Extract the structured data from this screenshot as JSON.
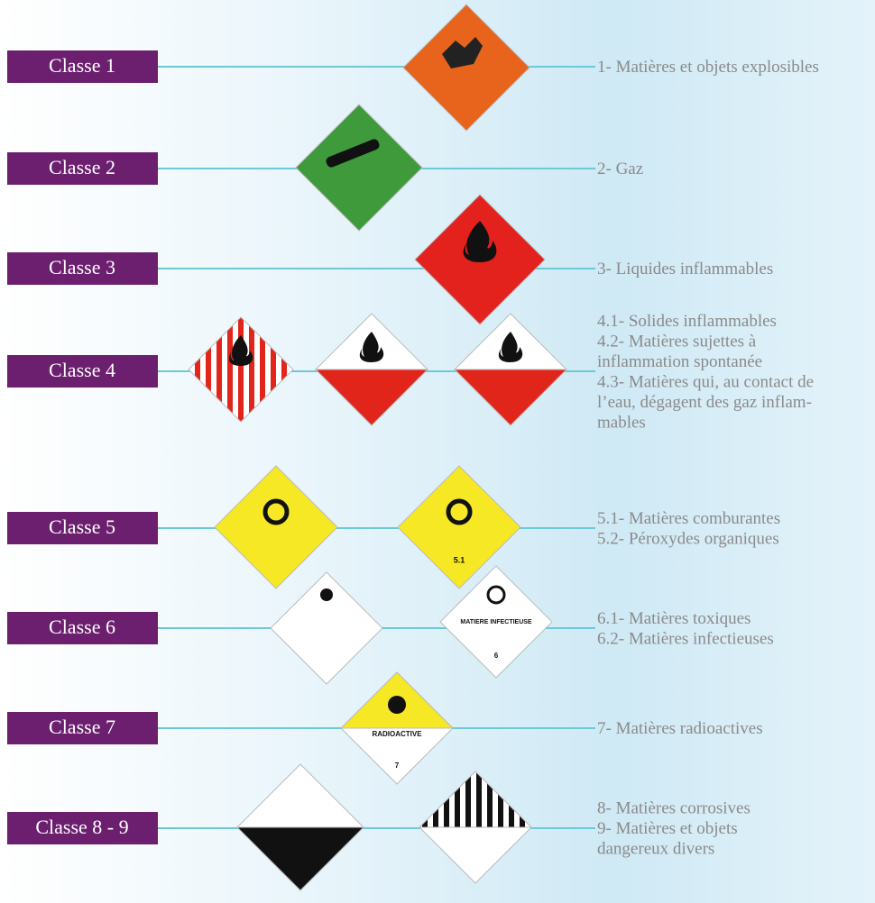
{
  "rows": [
    {
      "label": "Classe 1",
      "description": [
        "1- Matières et objets explosibles"
      ]
    },
    {
      "label": "Classe 2",
      "description": [
        "2- Gaz"
      ]
    },
    {
      "label": "Classe 3",
      "description": [
        "3- Liquides inflammables"
      ]
    },
    {
      "label": "Classe 4",
      "description": [
        "4.1- Solides inflammables",
        "4.2- Matières sujettes à",
        "inflammation spontanée",
        "4.3- Matières qui, au contact de",
        "l’eau, dégagent des gaz inflam-",
        "mables"
      ]
    },
    {
      "label": "Classe 5",
      "description": [
        "5.1- Matières comburantes",
        "5.2- Péroxydes organiques"
      ]
    },
    {
      "label": "Classe 6",
      "description": [
        "6.1- Matières toxiques",
        "6.2- Matières infectieuses"
      ]
    },
    {
      "label": "Classe 7",
      "description": [
        "7- Matières radioactives"
      ]
    },
    {
      "label": "Classe 8 - 9",
      "description": [
        "8- Matières corrosives",
        "9- Matières et objets",
        "dangereux divers"
      ]
    }
  ],
  "placards": {
    "class5_number": "5.1",
    "class6_title": "MATIERE INFECTIEUSE",
    "class6_number": "6",
    "class7_title": "RADIOACTIVE",
    "class7_number": "7"
  }
}
